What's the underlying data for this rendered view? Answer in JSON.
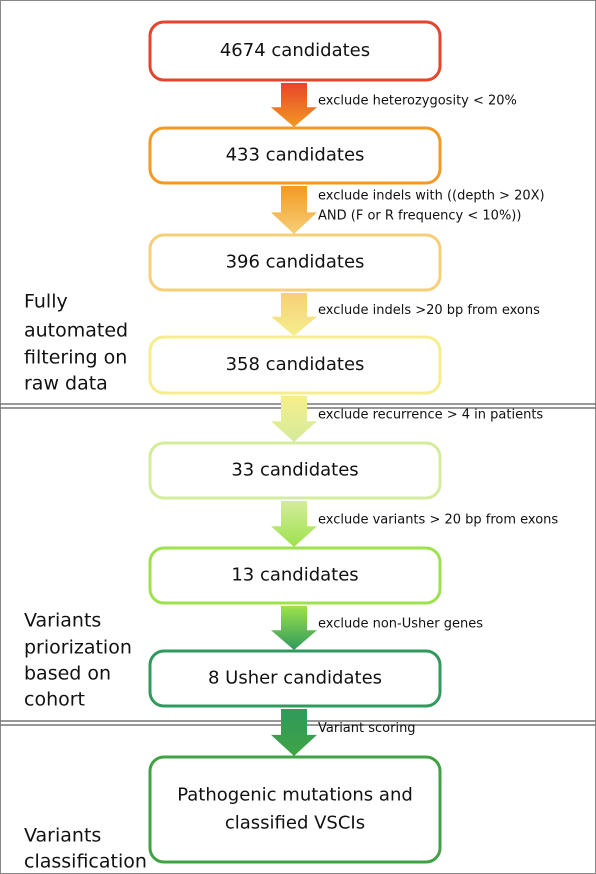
{
  "nodes": [
    {
      "lines": [
        "4674 candidates"
      ]
    },
    {
      "lines": [
        "433 candidates"
      ]
    },
    {
      "lines": [
        "396 candidates"
      ]
    },
    {
      "lines": [
        "358 candidates"
      ]
    },
    {
      "lines": [
        "33 candidates"
      ]
    },
    {
      "lines": [
        "13 candidates"
      ]
    },
    {
      "lines": [
        "8 Usher candidates"
      ]
    },
    {
      "lines": [
        "Pathogenic mutations and",
        "classified VSCIs"
      ]
    }
  ],
  "edges": [
    {
      "lines": [
        "exclude heterozygosity < 20%"
      ]
    },
    {
      "lines": [
        "exclude indels with ((depth > 20X)",
        "AND (F or R frequency < 10%))"
      ]
    },
    {
      "lines": [
        "exclude indels >20 bp from exons"
      ]
    },
    {
      "lines": [
        "exclude recurrence > 4 in patients"
      ]
    },
    {
      "lines": [
        "exclude variants > 20 bp from exons"
      ]
    },
    {
      "lines": [
        "exclude non-Usher genes"
      ]
    },
    {
      "lines": [
        "Variant scoring"
      ]
    }
  ],
  "sections": [
    {
      "lines": [
        "Fully",
        "automated",
        "filtering on",
        "raw data"
      ]
    },
    {
      "lines": [
        "Variants",
        "priorization",
        "based on",
        "cohort"
      ]
    },
    {
      "lines": [
        "Variants",
        "classification"
      ]
    }
  ]
}
